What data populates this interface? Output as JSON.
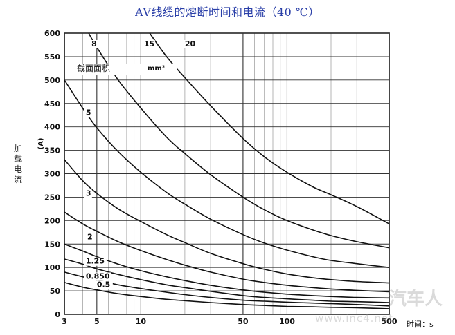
{
  "chart_data": {
    "type": "line",
    "title": "AV线缆的熔断时间和电流（40 ℃）",
    "xlabel": "时间：s",
    "ylabel": "加载电流",
    "yunit": "(A)",
    "legend_box": {
      "label": "截面面积",
      "unit": "mm²"
    },
    "xscale": "log",
    "xlim": [
      3,
      500
    ],
    "ylim": [
      0,
      600
    ],
    "xticks": [
      3,
      5,
      10,
      50,
      100,
      500
    ],
    "xtick_labels": [
      "3",
      "5",
      "10",
      "50",
      "100",
      "500"
    ],
    "yticks": [
      0,
      50,
      100,
      150,
      200,
      250,
      300,
      350,
      400,
      450,
      500,
      550,
      600
    ],
    "grid": true,
    "series": [
      {
        "name": "0.5",
        "label_at": [
          5,
          58
        ],
        "x": [
          3,
          4,
          5,
          7,
          10,
          15,
          20,
          30,
          50,
          70,
          100,
          150,
          200,
          300,
          500
        ],
        "y": [
          68,
          58,
          52,
          44,
          38,
          32,
          29,
          25,
          21,
          19,
          17,
          16,
          15,
          14,
          12
        ]
      },
      {
        "name": "0.850",
        "label_at": [
          4.2,
          76
        ],
        "x": [
          3,
          4,
          5,
          7,
          10,
          15,
          20,
          30,
          50,
          70,
          100,
          150,
          200,
          300,
          500
        ],
        "y": [
          90,
          80,
          73,
          63,
          55,
          47,
          42,
          36,
          30,
          28,
          26,
          24,
          23,
          21,
          18
        ]
      },
      {
        "name": "1.25",
        "label_at": [
          4.2,
          108
        ],
        "x": [
          3,
          4,
          5,
          7,
          10,
          15,
          20,
          30,
          50,
          70,
          100,
          150,
          200,
          300,
          500
        ],
        "y": [
          118,
          107,
          97,
          85,
          74,
          63,
          57,
          49,
          40,
          36,
          33,
          30,
          28,
          27,
          25
        ]
      },
      {
        "name": "2",
        "label_at": [
          4.3,
          160
        ],
        "x": [
          3,
          4,
          5,
          7,
          10,
          15,
          20,
          30,
          50,
          70,
          100,
          150,
          200,
          300,
          500
        ],
        "y": [
          150,
          135,
          123,
          107,
          93,
          80,
          72,
          62,
          52,
          47,
          43,
          40,
          38,
          36,
          35
        ]
      },
      {
        "name": "3",
        "label_at": [
          4.2,
          253
        ],
        "x": [
          3,
          4,
          5,
          7,
          10,
          15,
          20,
          30,
          50,
          70,
          100,
          150,
          200,
          300,
          500
        ],
        "y": [
          218,
          193,
          177,
          155,
          136,
          117,
          105,
          90,
          75,
          68,
          62,
          57,
          54,
          51,
          48
        ]
      },
      {
        "name": "5",
        "label_at": [
          4.2,
          425
        ],
        "x": [
          3,
          4,
          5,
          7,
          10,
          15,
          20,
          30,
          50,
          70,
          100,
          150,
          200,
          300,
          500
        ],
        "y": [
          330,
          285,
          258,
          225,
          198,
          170,
          153,
          130,
          108,
          96,
          86,
          78,
          74,
          70,
          67
        ]
      },
      {
        "name": "8",
        "label_at": [
          4.6,
          572
        ],
        "x": [
          3,
          4,
          5,
          7,
          10,
          15,
          20,
          30,
          50,
          70,
          100,
          150,
          200,
          300,
          500
        ],
        "y": [
          500,
          440,
          398,
          347,
          303,
          260,
          235,
          203,
          170,
          152,
          137,
          123,
          115,
          108,
          100
        ]
      },
      {
        "name": "15",
        "label_at": [
          10.5,
          572
        ],
        "x": [
          4.4,
          5,
          7,
          10,
          15,
          20,
          30,
          50,
          70,
          100,
          150,
          200,
          300,
          500
        ],
        "y": [
          600,
          570,
          500,
          440,
          378,
          343,
          298,
          250,
          223,
          200,
          180,
          168,
          155,
          142
        ]
      },
      {
        "name": "20",
        "label_at": [
          20,
          572
        ],
        "x": [
          11.5,
          15,
          20,
          30,
          50,
          70,
          100,
          150,
          200,
          300,
          500
        ],
        "y": [
          600,
          550,
          505,
          445,
          375,
          336,
          303,
          272,
          255,
          230,
          193
        ]
      }
    ]
  },
  "watermark": {
    "brand": "汽车人",
    "url": "www.inc4.net"
  },
  "colors": {
    "title": "#2a3fa8",
    "line": "#111111",
    "grid": "#333333"
  }
}
